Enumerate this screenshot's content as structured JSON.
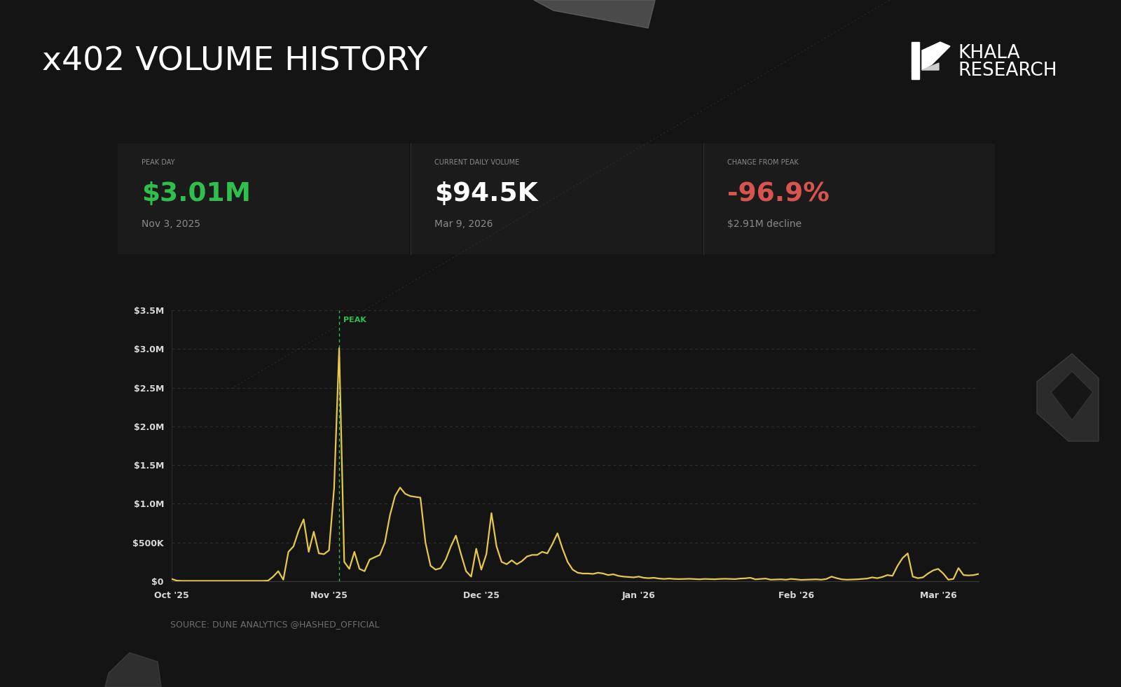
{
  "header": {
    "brand": [
      "KHALA",
      "RESEARCH"
    ]
  },
  "kpis": [
    {
      "label": "PEAK DAY",
      "value": "$3.01M",
      "note": "Nov 3, 2025"
    },
    {
      "label": "CURRENT DAILY VOLUME",
      "value": "$94.5K",
      "note": "Mar 9, 2026"
    },
    {
      "label": "CHANGE FROM PEAK",
      "value": "-96.9%",
      "note": "$2.91M decline"
    }
  ],
  "footer": "SOURCE: DUNE ANALYTICS @HASHED_OFFICIAL",
  "chart_data": {
    "type": "line",
    "title": "x402 VOLUME HISTORY",
    "annotations": [
      {
        "text": "PEAK"
      }
    ],
    "color": "#e6c84a",
    "grid": true,
    "ylim": [
      0,
      3500000
    ],
    "yticks": [
      {
        "value": 0,
        "label": "$0"
      },
      {
        "value": 500000,
        "label": "$500K"
      },
      {
        "value": 1000000,
        "label": "$1.0M"
      },
      {
        "value": 1500000,
        "label": "$1.5M"
      },
      {
        "value": 2000000,
        "label": "$2.0M"
      },
      {
        "value": 2500000,
        "label": "$2.5M"
      },
      {
        "value": 3000000,
        "label": "$3.0M"
      },
      {
        "value": 3500000,
        "label": "$3.5M"
      }
    ],
    "categories": [
      "Oct '25",
      null,
      null,
      null,
      null,
      null,
      null,
      null,
      null,
      null,
      null,
      null,
      null,
      null,
      null,
      null,
      null,
      null,
      null,
      null,
      null,
      null,
      null,
      null,
      null,
      null,
      null,
      null,
      null,
      null,
      null,
      "Nov '25",
      null,
      null,
      null,
      null,
      null,
      null,
      null,
      null,
      null,
      null,
      null,
      null,
      null,
      null,
      null,
      null,
      null,
      null,
      null,
      null,
      null,
      null,
      null,
      null,
      null,
      null,
      null,
      null,
      null,
      "Dec '25",
      null,
      null,
      null,
      null,
      null,
      null,
      null,
      null,
      null,
      null,
      null,
      null,
      null,
      null,
      null,
      null,
      null,
      null,
      null,
      null,
      null,
      null,
      null,
      null,
      null,
      null,
      null,
      null,
      null,
      null,
      "Jan '26",
      null,
      null,
      null,
      null,
      null,
      null,
      null,
      null,
      null,
      null,
      null,
      null,
      null,
      null,
      null,
      null,
      null,
      null,
      null,
      null,
      null,
      null,
      null,
      null,
      null,
      null,
      null,
      null,
      null,
      null,
      "Feb '26",
      null,
      null,
      null,
      null,
      null,
      null,
      null,
      null,
      null,
      null,
      null,
      null,
      null,
      null,
      null,
      null,
      null,
      null,
      null,
      null,
      null,
      null,
      null,
      null,
      null,
      null,
      null,
      "Mar '26",
      null,
      null,
      null,
      null,
      null,
      null,
      null,
      null
    ],
    "values": [
      30000,
      8000,
      5000,
      5000,
      5000,
      5000,
      5000,
      5000,
      5000,
      5000,
      5000,
      5000,
      5000,
      5000,
      5000,
      5000,
      5000,
      5000,
      5000,
      8000,
      60000,
      130000,
      20000,
      380000,
      450000,
      650000,
      800000,
      380000,
      640000,
      360000,
      350000,
      400000,
      1200000,
      3010000,
      250000,
      160000,
      380000,
      160000,
      130000,
      280000,
      310000,
      340000,
      500000,
      850000,
      1100000,
      1210000,
      1130000,
      1100000,
      1090000,
      1080000,
      500000,
      200000,
      150000,
      170000,
      280000,
      450000,
      590000,
      350000,
      130000,
      60000,
      420000,
      150000,
      350000,
      880000,
      450000,
      250000,
      220000,
      270000,
      220000,
      260000,
      320000,
      340000,
      340000,
      380000,
      360000,
      480000,
      620000,
      420000,
      250000,
      150000,
      110000,
      100000,
      100000,
      95000,
      110000,
      100000,
      80000,
      90000,
      70000,
      60000,
      55000,
      50000,
      60000,
      45000,
      40000,
      45000,
      35000,
      30000,
      35000,
      30000,
      28000,
      30000,
      32000,
      28000,
      25000,
      30000,
      28000,
      26000,
      30000,
      32000,
      30000,
      28000,
      35000,
      38000,
      45000,
      25000,
      30000,
      35000,
      20000,
      22000,
      25000,
      20000,
      30000,
      25000,
      18000,
      20000,
      22000,
      25000,
      20000,
      30000,
      60000,
      40000,
      25000,
      20000,
      22000,
      25000,
      30000,
      35000,
      50000,
      40000,
      55000,
      80000,
      70000,
      200000,
      300000,
      360000,
      60000,
      40000,
      50000,
      100000,
      140000,
      160000,
      100000,
      20000,
      30000,
      170000,
      80000,
      75000,
      80000,
      94500
    ]
  }
}
